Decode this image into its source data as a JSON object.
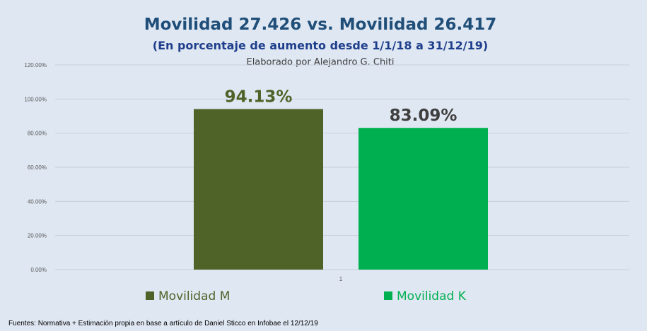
{
  "colors": {
    "background": "#dfe7f2",
    "grid": "#c7cfdb",
    "series_m": "#4f6228",
    "series_k": "#00b050",
    "label_m": "#4f6228",
    "label_k": "#3f3f3f"
  },
  "chart_data": {
    "type": "bar",
    "title": "Movilidad  27.426 vs. Movilidad 26.417",
    "subtitle": "(En porcentaje de aumento desde 1/1/18 a 31/12/19)",
    "author": "Elaborado por Alejandro G. Chiti",
    "categories": [
      "1"
    ],
    "series": [
      {
        "name": "Movilidad M",
        "values": [
          94.13
        ],
        "label": "94.13%"
      },
      {
        "name": "Movilidad K",
        "values": [
          83.09
        ],
        "label": "83.09%"
      }
    ],
    "ylim": [
      0,
      120
    ],
    "yticks": [
      0,
      20,
      40,
      60,
      80,
      100,
      120
    ],
    "ytick_labels": [
      "0.00%",
      "20.00%",
      "40.00%",
      "60.00%",
      "80.00%",
      "100.00%",
      "120.00%"
    ],
    "grid": true,
    "legend_position": "bottom",
    "footer": "Fuentes: Normativa + Estimación propia en base a artículo de Daniel Sticco en Infobae el 12/12/19"
  }
}
